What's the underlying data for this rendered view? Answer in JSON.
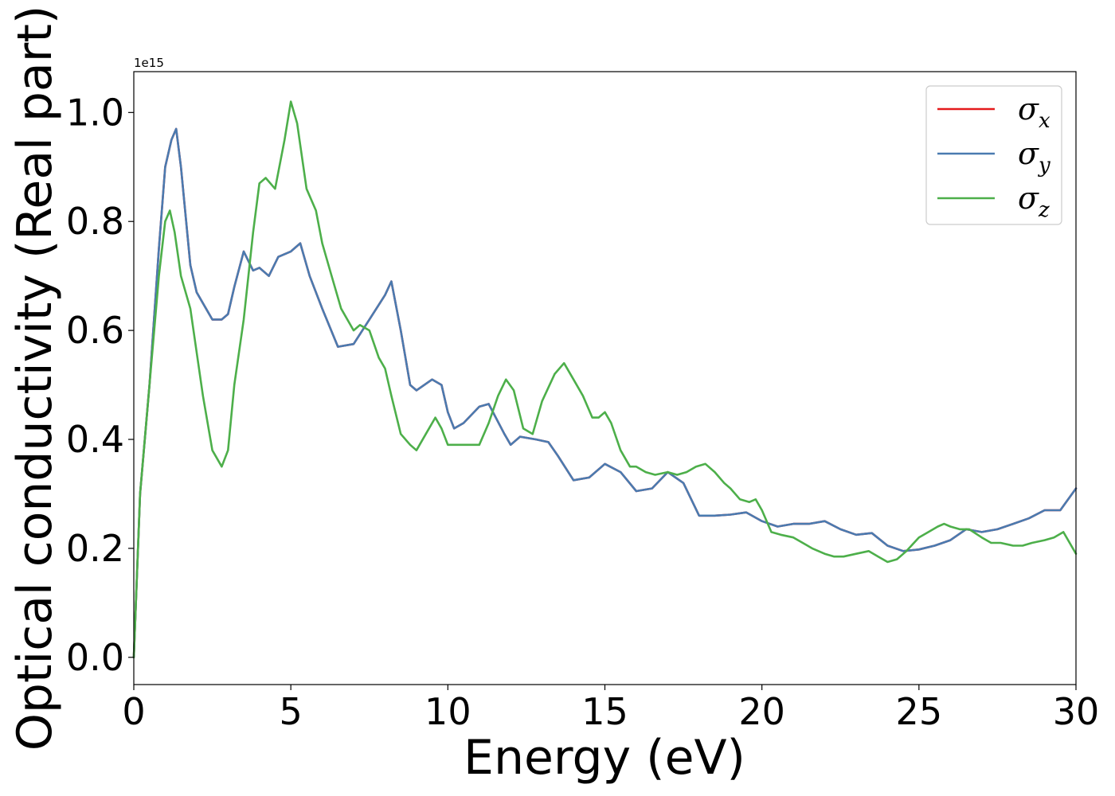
{
  "chart_data": {
    "type": "line",
    "title": "",
    "xlabel": "Energy (eV)",
    "ylabel": "Optical conductivity (Real part)",
    "y_offset_label": "1e15",
    "xlim": [
      0,
      30
    ],
    "ylim": [
      -0.05,
      1.075
    ],
    "x_ticks": [
      0,
      5,
      10,
      15,
      20,
      25,
      30
    ],
    "x_tick_labels": [
      "0",
      "5",
      "10",
      "15",
      "20",
      "25",
      "30"
    ],
    "y_ticks": [
      0.0,
      0.2,
      0.4,
      0.6,
      0.8,
      1.0
    ],
    "y_tick_labels": [
      "0.0",
      "0.2",
      "0.4",
      "0.6",
      "0.8",
      "1.0"
    ],
    "grid": false,
    "legend_position": "top-right",
    "series": [
      {
        "name": "σx",
        "legend_symbol": "σ",
        "legend_subscript": "x",
        "color": "#e41a1c",
        "x": [
          0,
          0.2,
          0.5,
          0.8,
          1.0,
          1.2,
          1.35,
          1.5,
          1.8,
          2.0,
          2.3,
          2.5,
          2.8,
          3.0,
          3.2,
          3.5,
          3.8,
          4.0,
          4.3,
          4.6,
          5.0,
          5.3,
          5.6,
          6.0,
          6.5,
          7.0,
          7.5,
          8.0,
          8.2,
          8.5,
          8.8,
          9.0,
          9.5,
          9.8,
          10.0,
          10.2,
          10.5,
          11.0,
          11.3,
          11.8,
          12.0,
          12.3,
          12.8,
          13.2,
          13.5,
          14.0,
          14.5,
          15.0,
          15.5,
          16.0,
          16.5,
          17.0,
          17.5,
          18.0,
          18.5,
          19.0,
          19.5,
          20.0,
          20.5,
          21.0,
          21.5,
          22.0,
          22.5,
          23.0,
          23.5,
          24.0,
          24.5,
          25.0,
          25.5,
          26.0,
          26.5,
          27.0,
          27.5,
          28.0,
          28.5,
          29.0,
          29.5,
          30.0
        ],
        "y": [
          0.0,
          0.3,
          0.5,
          0.75,
          0.9,
          0.95,
          0.97,
          0.9,
          0.72,
          0.67,
          0.64,
          0.62,
          0.62,
          0.63,
          0.68,
          0.745,
          0.71,
          0.715,
          0.7,
          0.735,
          0.745,
          0.76,
          0.7,
          0.64,
          0.57,
          0.575,
          0.62,
          0.665,
          0.69,
          0.6,
          0.5,
          0.49,
          0.51,
          0.5,
          0.45,
          0.42,
          0.43,
          0.46,
          0.465,
          0.41,
          0.39,
          0.405,
          0.4,
          0.395,
          0.37,
          0.325,
          0.33,
          0.355,
          0.34,
          0.305,
          0.31,
          0.34,
          0.32,
          0.26,
          0.26,
          0.262,
          0.266,
          0.25,
          0.24,
          0.245,
          0.245,
          0.25,
          0.235,
          0.225,
          0.228,
          0.205,
          0.195,
          0.198,
          0.205,
          0.215,
          0.235,
          0.23,
          0.235,
          0.245,
          0.255,
          0.27,
          0.27,
          0.31
        ]
      },
      {
        "name": "σy",
        "legend_symbol": "σ",
        "legend_subscript": "y",
        "color": "#4a7bb0",
        "x": [
          0,
          0.2,
          0.5,
          0.8,
          1.0,
          1.2,
          1.35,
          1.5,
          1.8,
          2.0,
          2.3,
          2.5,
          2.8,
          3.0,
          3.2,
          3.5,
          3.8,
          4.0,
          4.3,
          4.6,
          5.0,
          5.3,
          5.6,
          6.0,
          6.5,
          7.0,
          7.5,
          8.0,
          8.2,
          8.5,
          8.8,
          9.0,
          9.5,
          9.8,
          10.0,
          10.2,
          10.5,
          11.0,
          11.3,
          11.8,
          12.0,
          12.3,
          12.8,
          13.2,
          13.5,
          14.0,
          14.5,
          15.0,
          15.5,
          16.0,
          16.5,
          17.0,
          17.5,
          18.0,
          18.5,
          19.0,
          19.5,
          20.0,
          20.5,
          21.0,
          21.5,
          22.0,
          22.5,
          23.0,
          23.5,
          24.0,
          24.5,
          25.0,
          25.5,
          26.0,
          26.5,
          27.0,
          27.5,
          28.0,
          28.5,
          29.0,
          29.5,
          30.0
        ],
        "y": [
          0.0,
          0.3,
          0.5,
          0.75,
          0.9,
          0.95,
          0.97,
          0.9,
          0.72,
          0.67,
          0.64,
          0.62,
          0.62,
          0.63,
          0.68,
          0.745,
          0.71,
          0.715,
          0.7,
          0.735,
          0.745,
          0.76,
          0.7,
          0.64,
          0.57,
          0.575,
          0.62,
          0.665,
          0.69,
          0.6,
          0.5,
          0.49,
          0.51,
          0.5,
          0.45,
          0.42,
          0.43,
          0.46,
          0.465,
          0.41,
          0.39,
          0.405,
          0.4,
          0.395,
          0.37,
          0.325,
          0.33,
          0.355,
          0.34,
          0.305,
          0.31,
          0.34,
          0.32,
          0.26,
          0.26,
          0.262,
          0.266,
          0.25,
          0.24,
          0.245,
          0.245,
          0.25,
          0.235,
          0.225,
          0.228,
          0.205,
          0.195,
          0.198,
          0.205,
          0.215,
          0.235,
          0.23,
          0.235,
          0.245,
          0.255,
          0.27,
          0.27,
          0.31
        ]
      },
      {
        "name": "σz",
        "legend_symbol": "σ",
        "legend_subscript": "z",
        "color": "#4daf4a",
        "x": [
          0,
          0.2,
          0.5,
          0.8,
          1.0,
          1.15,
          1.3,
          1.5,
          1.8,
          2.0,
          2.2,
          2.5,
          2.8,
          3.0,
          3.2,
          3.5,
          3.8,
          4.0,
          4.2,
          4.5,
          4.8,
          5.0,
          5.2,
          5.5,
          5.8,
          6.0,
          6.3,
          6.6,
          7.0,
          7.2,
          7.5,
          7.8,
          8.0,
          8.2,
          8.5,
          8.8,
          9.0,
          9.3,
          9.6,
          9.8,
          10.0,
          10.3,
          10.6,
          11.0,
          11.3,
          11.6,
          11.85,
          12.1,
          12.4,
          12.7,
          13.0,
          13.4,
          13.7,
          14.0,
          14.3,
          14.6,
          14.8,
          15.0,
          15.2,
          15.5,
          15.8,
          16.0,
          16.3,
          16.6,
          17.0,
          17.3,
          17.6,
          17.9,
          18.2,
          18.5,
          18.8,
          19.0,
          19.3,
          19.6,
          19.8,
          20.0,
          20.3,
          20.6,
          21.0,
          21.3,
          21.6,
          22.0,
          22.3,
          22.6,
          23.0,
          23.4,
          23.7,
          24.0,
          24.3,
          24.6,
          25.0,
          25.3,
          25.6,
          25.8,
          26.0,
          26.3,
          26.6,
          27.0,
          27.3,
          27.6,
          28.0,
          28.3,
          28.6,
          29.0,
          29.3,
          29.6,
          30.0
        ],
        "y": [
          0.0,
          0.3,
          0.5,
          0.7,
          0.8,
          0.82,
          0.78,
          0.7,
          0.64,
          0.56,
          0.48,
          0.38,
          0.35,
          0.38,
          0.5,
          0.62,
          0.78,
          0.87,
          0.88,
          0.86,
          0.95,
          1.02,
          0.98,
          0.86,
          0.82,
          0.76,
          0.7,
          0.64,
          0.6,
          0.61,
          0.6,
          0.55,
          0.53,
          0.48,
          0.41,
          0.39,
          0.38,
          0.41,
          0.44,
          0.42,
          0.39,
          0.39,
          0.39,
          0.39,
          0.43,
          0.48,
          0.51,
          0.49,
          0.42,
          0.41,
          0.47,
          0.52,
          0.54,
          0.51,
          0.48,
          0.44,
          0.44,
          0.45,
          0.43,
          0.38,
          0.35,
          0.35,
          0.34,
          0.335,
          0.34,
          0.335,
          0.34,
          0.35,
          0.355,
          0.34,
          0.32,
          0.31,
          0.29,
          0.285,
          0.29,
          0.27,
          0.23,
          0.225,
          0.22,
          0.21,
          0.2,
          0.19,
          0.185,
          0.185,
          0.19,
          0.195,
          0.185,
          0.175,
          0.18,
          0.195,
          0.22,
          0.23,
          0.24,
          0.245,
          0.24,
          0.235,
          0.235,
          0.22,
          0.21,
          0.21,
          0.205,
          0.205,
          0.21,
          0.215,
          0.22,
          0.23,
          0.19
        ]
      }
    ]
  }
}
